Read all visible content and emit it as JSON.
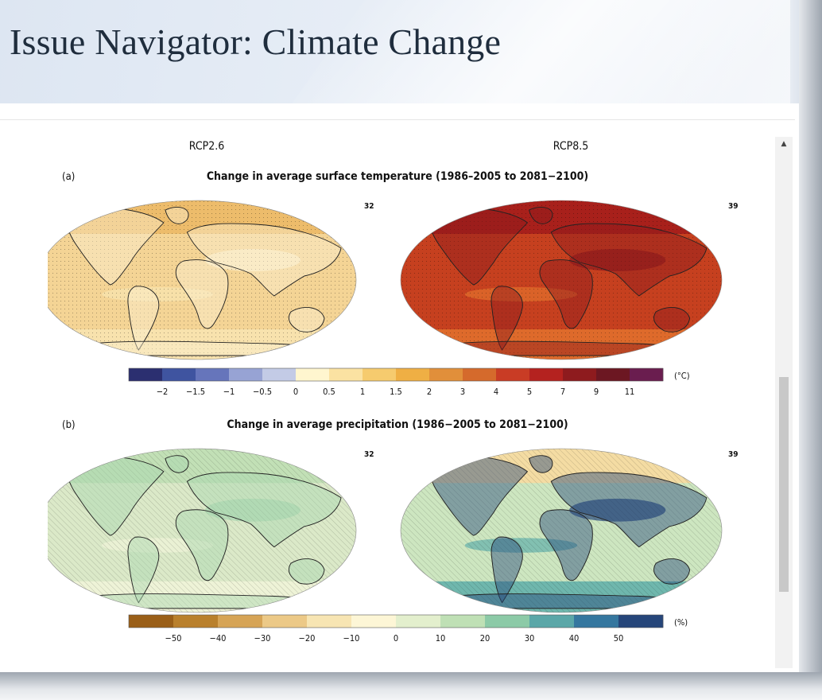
{
  "slide": {
    "title": "Issue Navigator: Climate Change"
  },
  "figure": {
    "scenario_left": "RCP2.6",
    "scenario_right": "RCP8.5",
    "panel_a": {
      "label": "(a)",
      "title": "Change in average surface temperature (1986–2005 to 2081−2100)",
      "model_count_left": "32",
      "model_count_right": "39",
      "colorbar_unit": "(°C)",
      "colorbar_ticks": [
        "−2",
        "−1.5",
        "−1",
        "−0.5",
        "0",
        "0.5",
        "1",
        "1.5",
        "2",
        "3",
        "4",
        "5",
        "7",
        "9",
        "11"
      ],
      "colors": [
        "#2b2f70",
        "#3f54a0",
        "#6675bb",
        "#97a3d4",
        "#c3cbe6",
        "#fff6cf",
        "#fbe2a2",
        "#f6cb6e",
        "#efaf44",
        "#e18f3a",
        "#d56a2c",
        "#c93c25",
        "#b4221f",
        "#8e1b1e",
        "#6c1722",
        "#6a1d4f"
      ],
      "map_left_colors": [
        "#f4d495",
        "#edbc6b",
        "#f8e2ad",
        "#fbf0d0"
      ],
      "map_right_colors": [
        "#c6401f",
        "#a8201b",
        "#de6a2b",
        "#8f1a1c"
      ]
    },
    "panel_b": {
      "label": "(b)",
      "title": "Change in average precipitation (1986−2005 to 2081−2100)",
      "model_count_left": "32",
      "model_count_right": "39",
      "colorbar_unit": "(%)",
      "colorbar_ticks": [
        "−50",
        "−40",
        "−30",
        "−20",
        "−10",
        "0",
        "10",
        "20",
        "30",
        "40",
        "50"
      ],
      "colors": [
        "#9a5f18",
        "#b9802c",
        "#d6a456",
        "#ecc987",
        "#f7e5b3",
        "#fdf6d6",
        "#e3efcd",
        "#bfe0b5",
        "#8ccaa7",
        "#5ba7a8",
        "#35779f",
        "#26467a"
      ],
      "map_left_colors": [
        "#dbe9c8",
        "#c2e0b6",
        "#eef3d7",
        "#a9d6b0"
      ],
      "map_right_colors": [
        "#cde6c0",
        "#f4dca3",
        "#6fb7ad",
        "#29497d"
      ]
    }
  }
}
